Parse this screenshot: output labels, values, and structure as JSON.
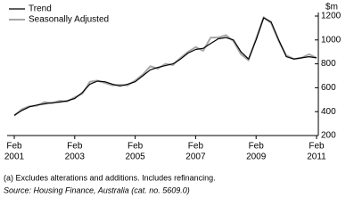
{
  "chart_data": {
    "type": "line",
    "y_label": "$m",
    "x": [
      "2001-02",
      "2001-05",
      "2001-08",
      "2001-11",
      "2002-02",
      "2002-05",
      "2002-08",
      "2002-11",
      "2003-02",
      "2003-05",
      "2003-08",
      "2003-11",
      "2004-02",
      "2004-05",
      "2004-08",
      "2004-11",
      "2005-02",
      "2005-05",
      "2005-08",
      "2005-11",
      "2006-02",
      "2006-05",
      "2006-08",
      "2006-11",
      "2007-02",
      "2007-05",
      "2007-08",
      "2007-11",
      "2008-02",
      "2008-05",
      "2008-08",
      "2008-11",
      "2009-02",
      "2009-05",
      "2009-08",
      "2009-11",
      "2010-02",
      "2010-05",
      "2010-08",
      "2010-11",
      "2011-02"
    ],
    "series": [
      {
        "name": "Trend",
        "color": "#000000",
        "values": [
          370,
          410,
          440,
          455,
          465,
          475,
          480,
          490,
          510,
          560,
          630,
          655,
          650,
          630,
          615,
          630,
          650,
          700,
          750,
          770,
          785,
          800,
          840,
          890,
          920,
          930,
          970,
          1010,
          1020,
          1000,
          900,
          840,
          1000,
          1185,
          1150,
          1000,
          860,
          840,
          850,
          860,
          850
        ]
      },
      {
        "name": "Seasonally Adjusted",
        "color": "#a6a6a6",
        "values": [
          365,
          420,
          445,
          450,
          480,
          470,
          490,
          485,
          520,
          550,
          650,
          660,
          640,
          620,
          625,
          620,
          660,
          710,
          780,
          760,
          800,
          790,
          850,
          900,
          940,
          910,
          1020,
          1020,
          1040,
          990,
          880,
          830,
          1010,
          1190,
          1140,
          990,
          870,
          840,
          850,
          880,
          850
        ]
      }
    ],
    "xlim": [
      "2001-02",
      "2011-02"
    ],
    "xticks": [
      {
        "value": "2001-02",
        "label": [
          "Feb",
          "2001"
        ]
      },
      {
        "value": "2003-02",
        "label": [
          "Feb",
          "2003"
        ]
      },
      {
        "value": "2005-02",
        "label": [
          "Feb",
          "2005"
        ]
      },
      {
        "value": "2007-02",
        "label": [
          "Feb",
          "2007"
        ]
      },
      {
        "value": "2009-02",
        "label": [
          "Feb",
          "2009"
        ]
      },
      {
        "value": "2011-02",
        "label": [
          "Feb",
          "2011"
        ]
      }
    ],
    "ylim": [
      200,
      1200
    ],
    "yticks": [
      200,
      400,
      600,
      800,
      1000,
      1200
    ],
    "notes": [
      "(a) Excludes alterations and additions. Includes refinancing.",
      "Source: Housing Finance, Australia (cat. no. 5609.0)"
    ]
  }
}
